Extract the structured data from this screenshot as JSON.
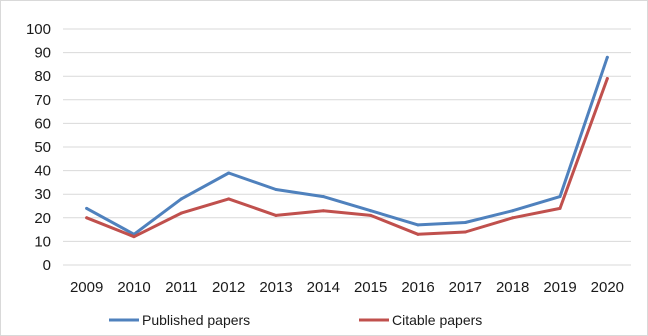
{
  "chart_data": {
    "type": "line",
    "title": "",
    "xlabel": "",
    "ylabel": "",
    "categories": [
      "2009",
      "2010",
      "2011",
      "2012",
      "2013",
      "2014",
      "2015",
      "2016",
      "2017",
      "2018",
      "2019",
      "2020"
    ],
    "ylim": [
      0,
      100
    ],
    "yticks": [
      0,
      10,
      20,
      30,
      40,
      50,
      60,
      70,
      80,
      90,
      100
    ],
    "grid": true,
    "legend_position": "bottom",
    "series": [
      {
        "name": "Published papers",
        "color": "#4f81bd",
        "values": [
          24,
          13,
          28,
          39,
          32,
          29,
          23,
          17,
          18,
          23,
          29,
          88
        ]
      },
      {
        "name": "Citable papers",
        "color": "#c0504d",
        "values": [
          20,
          12,
          22,
          28,
          21,
          23,
          21,
          13,
          14,
          20,
          24,
          79
        ]
      }
    ]
  }
}
